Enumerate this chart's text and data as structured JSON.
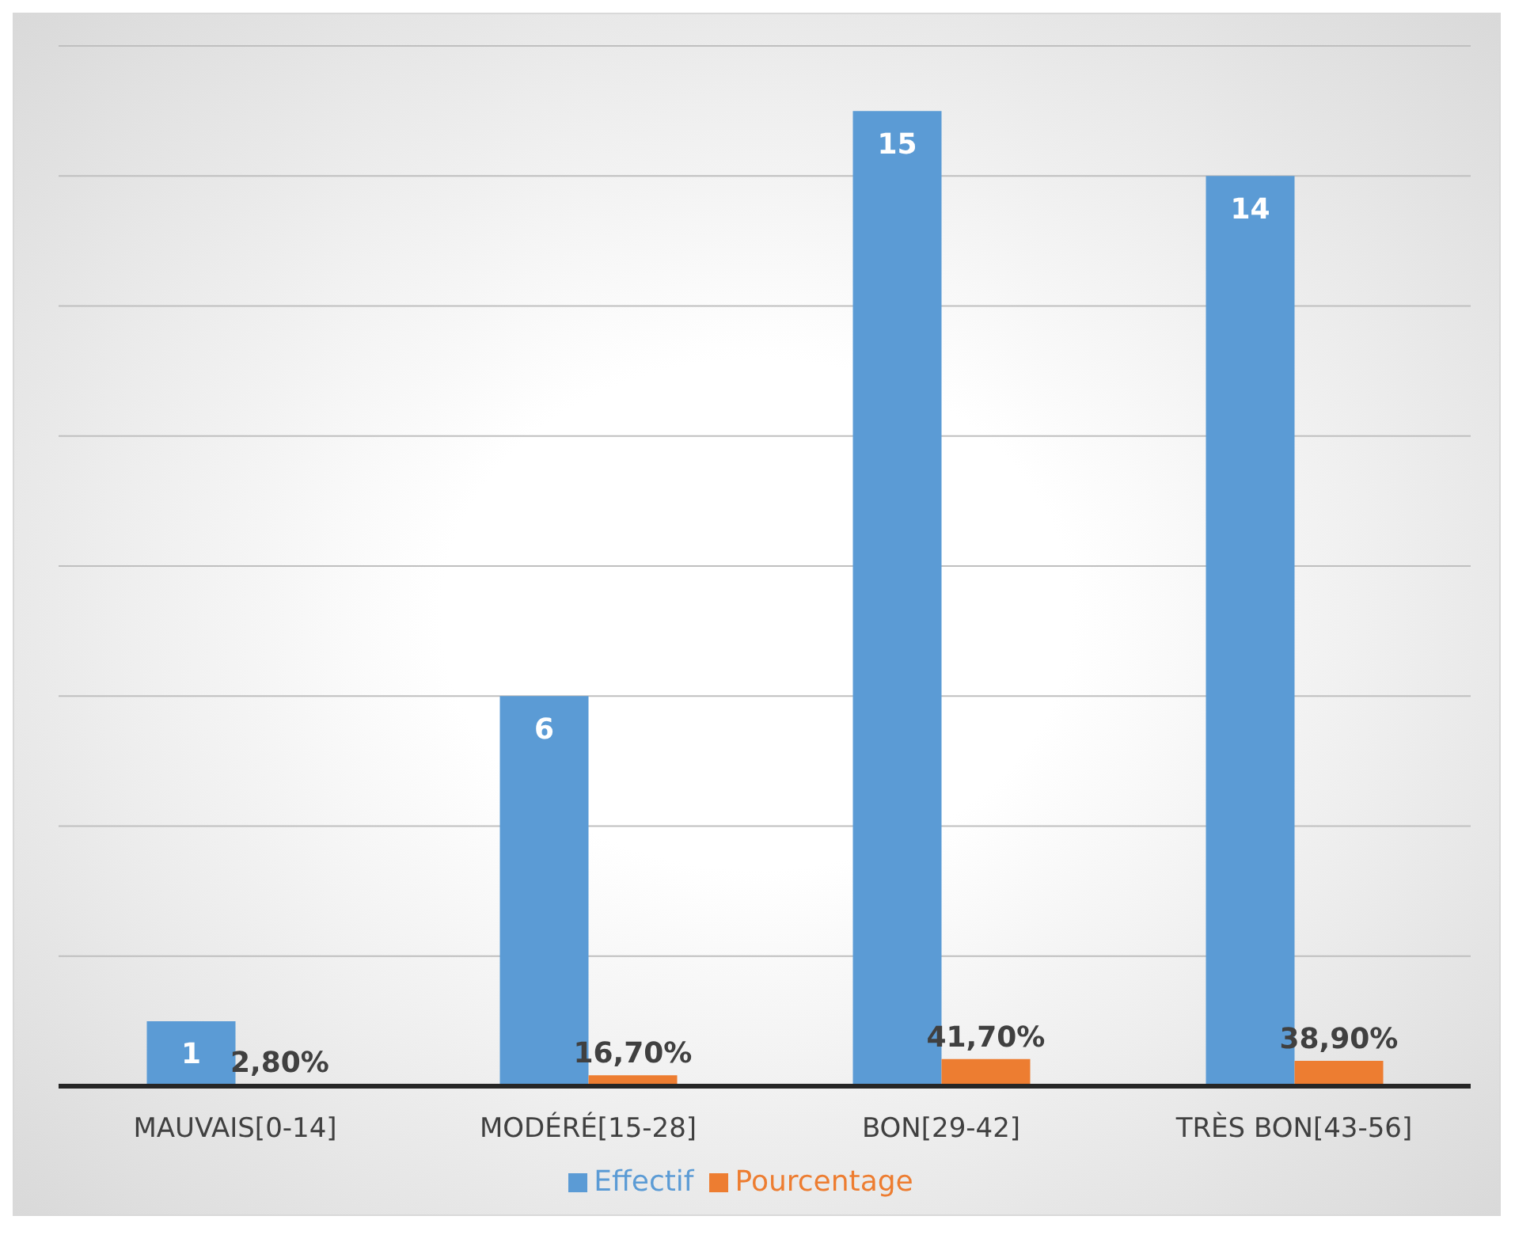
{
  "chart_data": {
    "type": "bar",
    "categories": [
      "MAUVAIS[0-14]",
      "MODÉRÉ[15-28]",
      "BON[29-42]",
      "TRÈS BON[43-56]"
    ],
    "series": [
      {
        "name": "Effectif",
        "color": "#5b9bd5",
        "values": [
          1,
          6,
          15,
          14
        ],
        "data_labels": true
      },
      {
        "name": "Pourcentage",
        "color": "#ed7d31",
        "values": [
          0.028,
          0.167,
          0.417,
          0.389
        ],
        "value_labels": [
          "2,80%",
          "16,70%",
          "41,70%",
          "38,90%"
        ]
      }
    ],
    "ylim": [
      0,
      16
    ],
    "tick_labels": "x",
    "grid": "y",
    "legend": "bottom"
  }
}
